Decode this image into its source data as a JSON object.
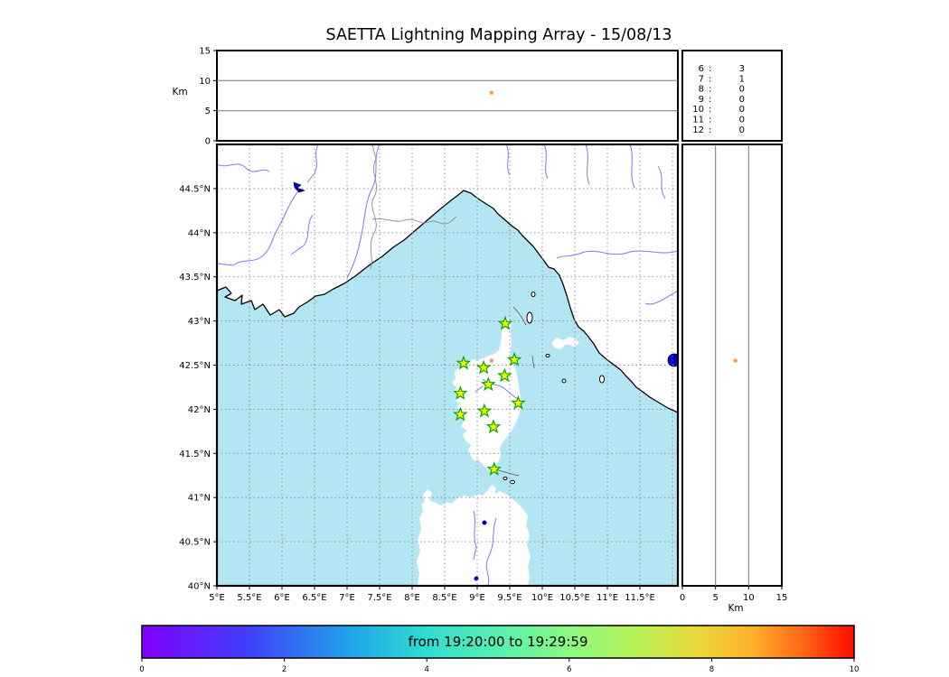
{
  "title": "SAETTA Lightning Mapping Array - 15/08/13",
  "top_panel": {
    "ylabel": "Km",
    "yticks": [
      "15",
      "10",
      "5",
      "0"
    ],
    "ymax": 15
  },
  "legend": {
    "rows": [
      {
        "alt": "6",
        "count": "3",
        "highlight": false
      },
      {
        "alt": "7",
        "count": "1",
        "highlight": true
      },
      {
        "alt": "8",
        "count": "0",
        "highlight": false
      },
      {
        "alt": "9",
        "count": "0",
        "highlight": false
      },
      {
        "alt": "10",
        "count": "0",
        "highlight": false
      },
      {
        "alt": "11",
        "count": "0",
        "highlight": false
      },
      {
        "alt": "12",
        "count": "0",
        "highlight": false
      }
    ],
    "highlight_color": "#ff0000"
  },
  "map": {
    "lat_ticks": [
      "44.5°N",
      "44°N",
      "43.5°N",
      "43°N",
      "42.5°N",
      "42°N",
      "41.5°N",
      "41°N",
      "40.5°N",
      "40°N"
    ],
    "lon_ticks": [
      "5°E",
      "5.5°E",
      "6°E",
      "6.5°E",
      "7°E",
      "7.5°E",
      "8°E",
      "8.5°E",
      "9°E",
      "9.5°E",
      "10°E",
      "10.5°E",
      "11°E",
      "11.5°E"
    ],
    "extent": {
      "lon_min": 5.0,
      "lon_max": 12.083,
      "lat_min": 40.0,
      "lat_max": 45.0
    },
    "grid_step_deg": 0.5,
    "sea_color": "#b3e6f2",
    "stations_lonlat": [
      [
        9.43,
        42.97
      ],
      [
        8.79,
        42.52
      ],
      [
        9.1,
        42.47
      ],
      [
        9.57,
        42.56
      ],
      [
        9.42,
        42.38
      ],
      [
        9.17,
        42.28
      ],
      [
        8.74,
        42.18
      ],
      [
        9.63,
        42.07
      ],
      [
        8.74,
        41.94
      ],
      [
        9.11,
        41.98
      ],
      [
        9.25,
        41.8
      ],
      [
        9.26,
        41.32
      ]
    ],
    "station_style": {
      "fill": "#ffff00",
      "stroke": "#00a800"
    }
  },
  "source_point": {
    "lon": 9.22,
    "lat": 42.55,
    "alt_km": 8.0,
    "color": "#ff9944"
  },
  "right_panel": {
    "xlabel": "Km",
    "xticks": [
      "0",
      "5",
      "10",
      "15"
    ],
    "xmax": 15
  },
  "colorbar": {
    "label": "from 19:20:00 to 19:29:59",
    "ticks": [
      "0",
      "2",
      "4",
      "6",
      "8",
      "10"
    ],
    "min": 0,
    "max": 10
  }
}
